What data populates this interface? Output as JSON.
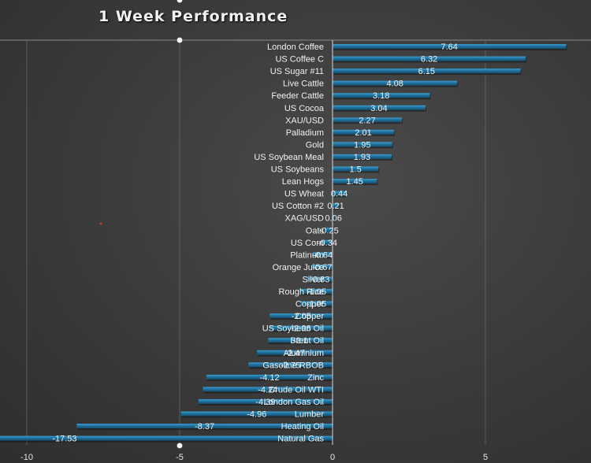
{
  "chart_data": {
    "type": "bar",
    "orientation": "horizontal",
    "title": "1 Week Performance",
    "categories": [
      "London Coffee",
      "US Coffee C",
      "US Sugar #11",
      "Live Cattle",
      "Feeder Cattle",
      "US Cocoa",
      "XAU/USD",
      "Palladium",
      "Gold",
      "US Soybean Meal",
      "US Soybeans",
      "Lean Hogs",
      "US Wheat",
      "US Cotton #2",
      "XAG/USD",
      "Oats",
      "US Corn",
      "Platinum",
      "Orange Juice",
      "Silver",
      "Rough Rice",
      "Copper",
      "Copper",
      "US Soybean Oil",
      "Brent Oil",
      "Aluminium",
      "Gasoline RBOB",
      "Zinc",
      "Crude Oil WTI",
      "London Gas Oil",
      "Lumber",
      "Heating Oil",
      "Natural Gas"
    ],
    "values": [
      7.64,
      6.32,
      6.15,
      4.08,
      3.18,
      3.04,
      2.27,
      2.01,
      1.95,
      1.93,
      1.5,
      1.45,
      0.44,
      0.21,
      0.06,
      -0.25,
      -0.34,
      -0.64,
      -0.67,
      -0.83,
      -1.05,
      -1.05,
      -2.05,
      -2.06,
      -2.1,
      -2.47,
      -2.75,
      -4.12,
      -4.24,
      -4.39,
      -4.96,
      -8.37,
      -17.53
    ],
    "value_labels": [
      "7.64",
      "6.32",
      "6.15",
      "4.08",
      "3.18",
      "3.04",
      "2.27",
      "2.01",
      "1.95",
      "1.93",
      "1.5",
      "1.45",
      "0.44",
      "0.21",
      "0.06",
      "-0.25",
      "-0.34",
      "-0.64",
      "-0.67",
      "-0.83",
      "-1.05",
      "-1.05",
      "-2.05",
      "-2.06",
      "-2.1",
      "-2.47",
      "-2.75",
      "-4.12",
      "-4.24",
      "-4.39",
      "-4.96",
      "-8.37",
      "-17.53"
    ],
    "x_ticks": [
      -10,
      -5,
      0,
      5
    ],
    "x_tick_labels": [
      "-10",
      "-5",
      "0",
      "5"
    ],
    "xlim": [
      -11,
      8.5
    ],
    "bar_color": "#1f6e99",
    "grid": true
  }
}
